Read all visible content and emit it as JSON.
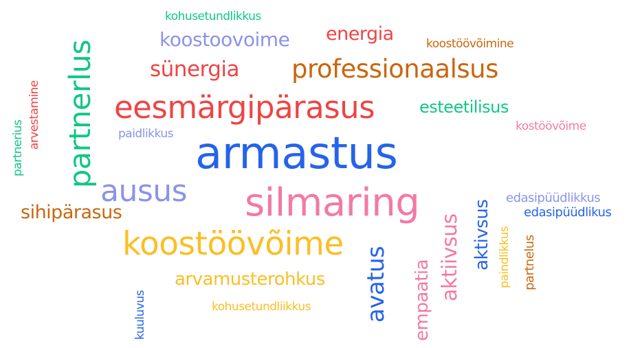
{
  "word_cloud": {
    "palette": {
      "blue": "#2563eb",
      "green": "#10c785",
      "red": "#ef4444",
      "orange": "#c8670f",
      "lavender": "#8b93e8",
      "pink": "#f27aa4",
      "yellow": "#fbbf24"
    },
    "words": [
      {
        "text": "kohusetundlikkus",
        "color": "green"
      },
      {
        "text": "koostoovoime",
        "color": "lavender"
      },
      {
        "text": "energia",
        "color": "red"
      },
      {
        "text": "koostöövõimine",
        "color": "orange"
      },
      {
        "text": "sünergia",
        "color": "red"
      },
      {
        "text": "professionaalsus",
        "color": "orange"
      },
      {
        "text": "partnerlus",
        "color": "green"
      },
      {
        "text": "arvestamine",
        "color": "red"
      },
      {
        "text": "partnerius",
        "color": "green"
      },
      {
        "text": "eesmärgipärasus",
        "color": "red"
      },
      {
        "text": "esteetilisus",
        "color": "green"
      },
      {
        "text": "kostöövõime",
        "color": "pink"
      },
      {
        "text": "paidlikkus",
        "color": "lavender"
      },
      {
        "text": "armastus",
        "color": "blue"
      },
      {
        "text": "ausus",
        "color": "lavender"
      },
      {
        "text": "silmaring",
        "color": "pink"
      },
      {
        "text": "edasipüüdlikkus",
        "color": "lavender"
      },
      {
        "text": "edasipüüdlikus",
        "color": "blue"
      },
      {
        "text": "sihipärasus",
        "color": "orange"
      },
      {
        "text": "koostöövõime",
        "color": "yellow"
      },
      {
        "text": "aktiivsus",
        "color": "pink"
      },
      {
        "text": "aktivsus",
        "color": "blue"
      },
      {
        "text": "avatus",
        "color": "blue"
      },
      {
        "text": "empaatia",
        "color": "pink"
      },
      {
        "text": "paindlikkus",
        "color": "yellow"
      },
      {
        "text": "partnelus",
        "color": "orange"
      },
      {
        "text": "arvamusterohkus",
        "color": "yellow"
      },
      {
        "text": "kohusetundliikkus",
        "color": "yellow"
      },
      {
        "text": "kuuluvus",
        "color": "blue"
      }
    ]
  }
}
